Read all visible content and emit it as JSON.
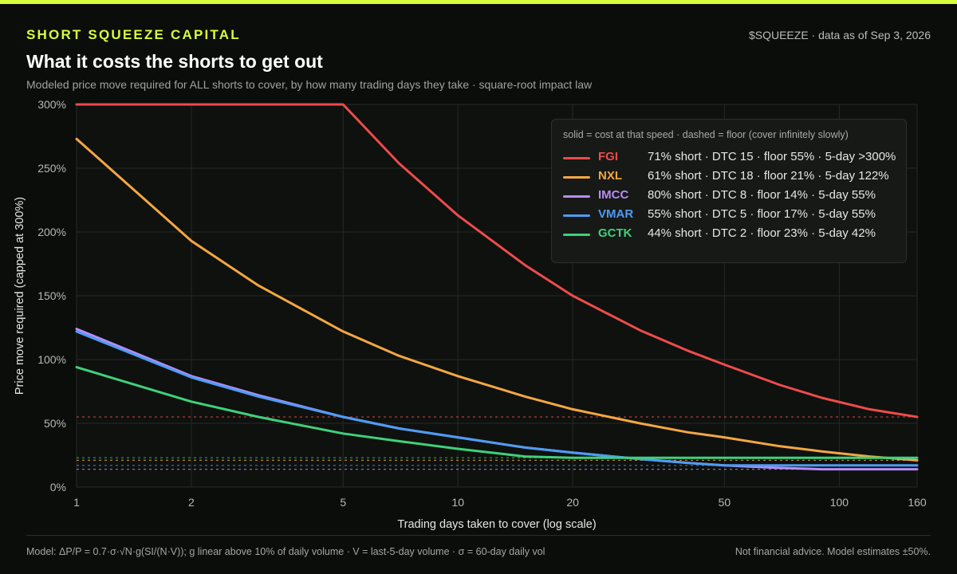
{
  "brand": "SHORT SQUEEZE CAPITAL",
  "as_of": "$SQUEEZE · data as of Sep 3, 2026",
  "title": "What it costs the shorts to get out",
  "subtitle": "Modeled price move required for ALL shorts to cover, by how many trading days they take · square-root impact law",
  "legend_note": "solid = cost at that speed · dashed = floor (cover infinitely slowly)",
  "footer_left": "Model: ΔP/P = 0.7·σ·√N·g(SI/(N·V)); g linear above 10% of daily volume · V = last-5-day volume · σ = 60-day daily vol",
  "footer_right": "Not financial advice. Model estimates ±50%.",
  "chart_data": {
    "type": "line",
    "xlabel": "Trading days taken to cover (log scale)",
    "ylabel": "Price move required (capped at 300%)",
    "x_scale": "log",
    "xlim": [
      1,
      160
    ],
    "ylim": [
      0,
      300
    ],
    "x_ticks": [
      1,
      2,
      5,
      10,
      20,
      50,
      100,
      160
    ],
    "x_tick_labels": [
      "1",
      "2",
      "5",
      "10",
      "20",
      "50",
      "100",
      "160"
    ],
    "y_ticks": [
      0,
      50,
      100,
      150,
      200,
      250,
      300
    ],
    "y_tick_labels": [
      "0%",
      "50%",
      "100%",
      "150%",
      "200%",
      "250%",
      "300%"
    ],
    "grid": true,
    "legend_position": "top-right",
    "x": [
      1,
      2,
      3,
      5,
      7,
      10,
      15,
      20,
      30,
      40,
      50,
      70,
      90,
      120,
      160
    ],
    "series": [
      {
        "name": "FGI",
        "color": "#ef4b4b",
        "floor": 55,
        "legend": "71% short · DTC 15 · floor 55% · 5-day >300%",
        "values": [
          300,
          300,
          300,
          300,
          254,
          213,
          174,
          150,
          123,
          107,
          96,
          80,
          70,
          61,
          55
        ]
      },
      {
        "name": "NXL",
        "color": "#f5a742",
        "floor": 21,
        "legend": "61% short · DTC 18 · floor 21% · 5-day 122%",
        "values": [
          273,
          193,
          158,
          122,
          103,
          87,
          71,
          61,
          50,
          43,
          39,
          32,
          28,
          24,
          21
        ]
      },
      {
        "name": "IMCC",
        "color": "#b98cf5",
        "floor": 14,
        "legend": "80% short · DTC 8 · floor 14% · 5-day 55%",
        "values": [
          124,
          87,
          72,
          55,
          46,
          39,
          31,
          27,
          22,
          19,
          17,
          15,
          14,
          14,
          14
        ]
      },
      {
        "name": "VMAR",
        "color": "#4d9cf5",
        "floor": 17,
        "legend": "55% short · DTC 5 · floor 17% · 5-day 55%",
        "values": [
          122,
          86,
          71,
          55,
          46,
          39,
          31,
          27,
          22,
          19,
          17,
          17,
          17,
          17,
          17
        ]
      },
      {
        "name": "GCTK",
        "color": "#3fd17a",
        "floor": 23,
        "legend": "44% short · DTC 2 · floor 23% · 5-day 42%",
        "values": [
          94,
          67,
          55,
          42,
          36,
          30,
          24,
          23,
          23,
          23,
          23,
          23,
          23,
          23,
          23
        ]
      }
    ]
  }
}
